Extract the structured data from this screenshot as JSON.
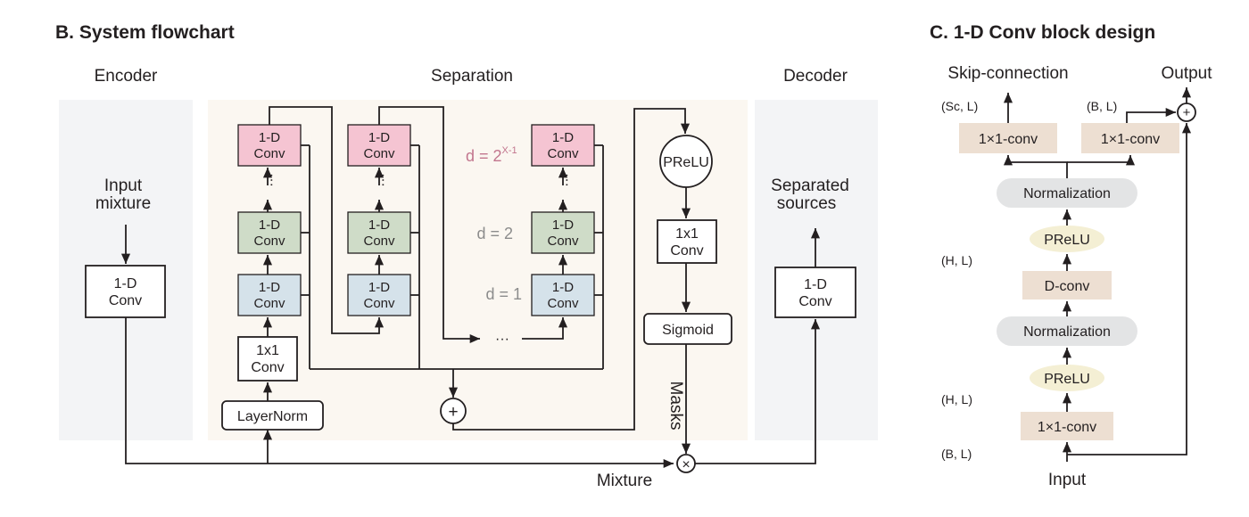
{
  "titles": {
    "b": "B. System flowchart",
    "c": "C. 1-D Conv block design"
  },
  "sections": {
    "encoder": "Encoder",
    "separation": "Separation",
    "decoder": "Decoder"
  },
  "labels": {
    "input_mixture_1": "Input",
    "input_mixture_2": "mixture",
    "separated_sources_1": "Separated",
    "separated_sources_2": "sources",
    "mixture": "Mixture",
    "masks": "Masks",
    "ellipsis": "···"
  },
  "blocks": {
    "conv1d_line1": "1-D",
    "conv1d_line2": "Conv",
    "conv1x1_line1": "1x1",
    "conv1x1_line2": "Conv",
    "layernorm": "LayerNorm",
    "prelu": "PReLU",
    "sigmoid": "Sigmoid",
    "plus": "+",
    "times": "×"
  },
  "dilations": {
    "top_prefix": "d = 2",
    "top_exponent": "X-1",
    "mid": "d = 2",
    "bottom": "d = 1"
  },
  "conv_block": {
    "skip_connection": "Skip-connection",
    "output": "Output",
    "input": "Input",
    "sc_l": "(Sc, L)",
    "b_l_top": "(B, L)",
    "h_l_1": "(H, L)",
    "h_l_2": "(H, L)",
    "b_l_bottom": "(B, L)",
    "conv_skip": "1×1-conv",
    "conv_out": "1×1-conv",
    "norm_top": "Normalization",
    "prelu_top": "PReLU",
    "dconv": "D-conv",
    "norm_bottom": "Normalization",
    "prelu_bottom": "PReLU",
    "conv_in": "1×1-conv"
  },
  "colors": {
    "pink": "#f5c4d2",
    "green": "#cfdcc8",
    "blue": "#d5e2ea",
    "tan": "#eddfd2",
    "gray_pill": "#e3e4e5",
    "cream_pill": "#f4efd4",
    "panel_gray": "#f3f4f6",
    "panel_cream": "#fbf7f1",
    "dilation_pink": "#c2768e",
    "dilation_gray": "#8c8c8c"
  }
}
